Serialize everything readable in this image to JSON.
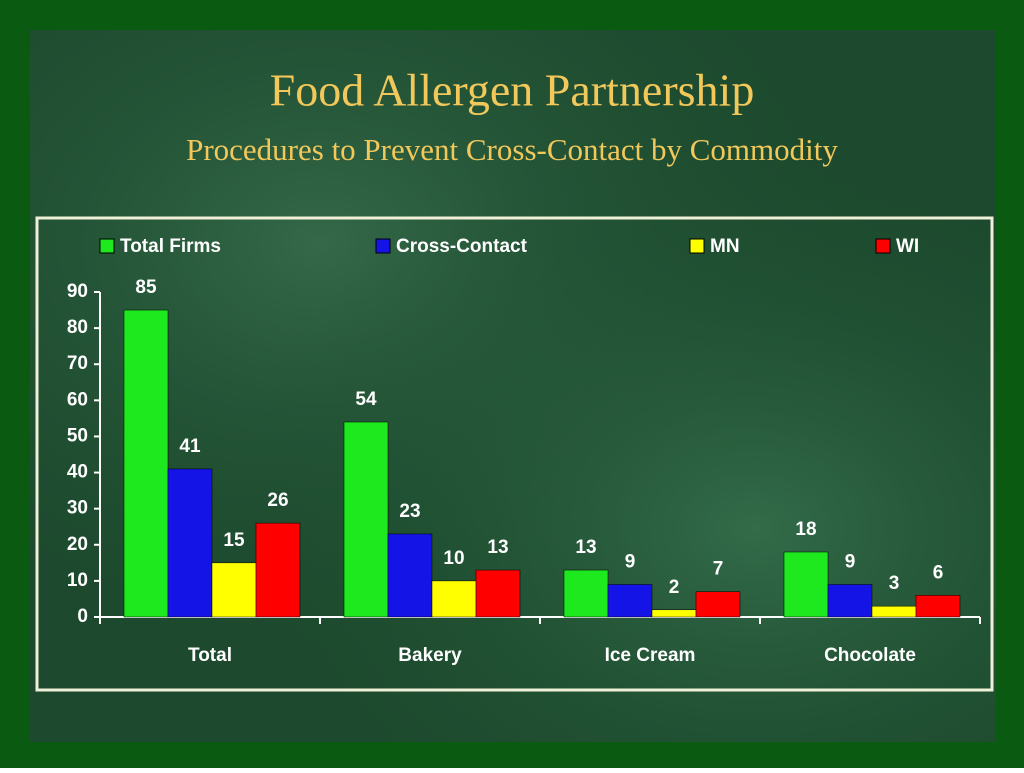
{
  "chart_data": {
    "type": "bar",
    "title": "Food Allergen Partnership",
    "subtitle": "Procedures to Prevent Cross-Contact by Commodity",
    "categories": [
      "Total",
      "Bakery",
      "Ice Cream",
      "Chocolate"
    ],
    "series": [
      {
        "name": "Total Firms",
        "color": "#1ee81e",
        "values": [
          85,
          54,
          13,
          18
        ]
      },
      {
        "name": "Cross-Contact",
        "color": "#1414e6",
        "values": [
          41,
          23,
          9,
          9
        ]
      },
      {
        "name": "MN",
        "color": "#ffff00",
        "values": [
          15,
          10,
          2,
          3
        ]
      },
      {
        "name": "WI",
        "color": "#ff0000",
        "values": [
          26,
          13,
          7,
          6
        ]
      }
    ],
    "ylim": [
      0,
      90
    ],
    "yticks": [
      0,
      10,
      20,
      30,
      40,
      50,
      60,
      70,
      80,
      90
    ],
    "grid": false,
    "legend": "top"
  }
}
